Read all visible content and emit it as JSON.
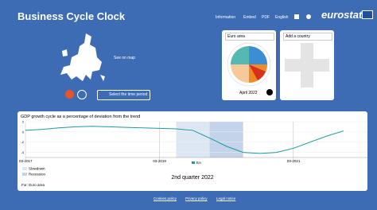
{
  "header": {
    "title": "Business Cycle Clock",
    "nav": [
      "Information",
      "Embed",
      "PDF",
      "English"
    ],
    "logo": "eurostat"
  },
  "map": {
    "label": "See on map"
  },
  "controls": {
    "time_button": "Select the time period"
  },
  "clock_panel": {
    "dropdown": "Euro area",
    "date": "April 2022"
  },
  "compare_panel": {
    "dropdown": "Add a country"
  },
  "chart_data": {
    "type": "line",
    "title": "GDP growth cycle as a percentage of deviation from the trend",
    "categories": [
      "03-2017",
      null,
      null,
      null,
      null,
      null,
      null,
      null,
      "03-2019",
      null,
      null,
      null,
      null,
      null,
      null,
      null,
      "03-2021",
      null,
      null,
      null
    ],
    "series": [
      {
        "name": "EA",
        "color": "#1a9aa0",
        "values": [
          0.3,
          0.5,
          0.8,
          1.0,
          1.1,
          1.0,
          0.9,
          0.8,
          0.7,
          0.6,
          0.3,
          -1.2,
          -2.8,
          -4.0,
          -4.2,
          -4.0,
          -3.2,
          -2.0,
          -0.8,
          0.2
        ]
      }
    ],
    "ylim": [
      -5,
      2
    ],
    "yticks": [
      -4,
      -2,
      0,
      2
    ],
    "grid": true,
    "phases": [
      {
        "name": "Slowdown",
        "color": "#dde7f3",
        "range": [
          9,
          11
        ]
      },
      {
        "name": "Recession",
        "color": "#c2d3ea",
        "range": [
          11,
          13
        ]
      }
    ]
  },
  "summary": {
    "period": "2nd quarter 2022",
    "for": "For: Euro area"
  },
  "footer": {
    "links": [
      "Cookies policy",
      "Privacy policy",
      "Legal notice"
    ]
  }
}
